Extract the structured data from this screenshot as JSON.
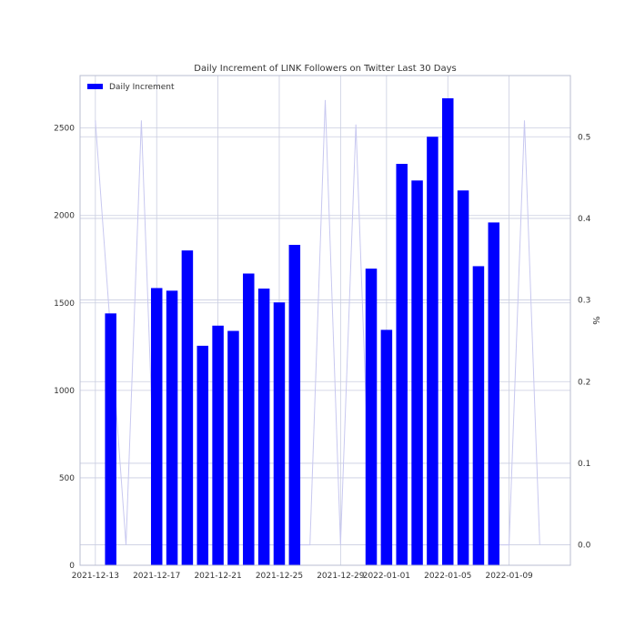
{
  "chart_data": {
    "type": "bar",
    "title": "Daily Increment of LINK Followers on Twitter Last 30 Days",
    "legend": {
      "position": "top-left",
      "entries": [
        "Daily Increment"
      ]
    },
    "series": [
      {
        "name": "Daily Increment",
        "color": "#0000ff",
        "points": [
          {
            "x": "2021-12-14",
            "y": 1440
          },
          {
            "x": "2021-12-17",
            "y": 1585
          },
          {
            "x": "2021-12-18",
            "y": 1570
          },
          {
            "x": "2021-12-19",
            "y": 1800
          },
          {
            "x": "2021-12-20",
            "y": 1255
          },
          {
            "x": "2021-12-21",
            "y": 1370
          },
          {
            "x": "2021-12-22",
            "y": 1340
          },
          {
            "x": "2021-12-23",
            "y": 1668
          },
          {
            "x": "2021-12-24",
            "y": 1582
          },
          {
            "x": "2021-12-25",
            "y": 1503
          },
          {
            "x": "2021-12-26",
            "y": 1832
          },
          {
            "x": "2021-12-31",
            "y": 1696
          },
          {
            "x": "2022-01-01",
            "y": 1346
          },
          {
            "x": "2022-01-02",
            "y": 2295
          },
          {
            "x": "2022-01-03",
            "y": 2200
          },
          {
            "x": "2022-01-04",
            "y": 2450
          },
          {
            "x": "2022-01-05",
            "y": 2670
          },
          {
            "x": "2022-01-06",
            "y": 2143
          },
          {
            "x": "2022-01-07",
            "y": 1710
          },
          {
            "x": "2022-01-08",
            "y": 1960
          }
        ]
      },
      {
        "name": "",
        "color": "#c8c8f0",
        "axis": "right",
        "points": [
          {
            "x": "2021-12-13",
            "y": 0.52
          },
          {
            "x": "2021-12-15",
            "y": 0.0
          },
          {
            "x": "2021-12-16",
            "y": 0.52
          },
          {
            "x": "2021-12-17",
            "y": 0.0
          },
          {
            "x": "2021-12-26",
            "y": 0.0
          },
          {
            "x": "2021-12-27",
            "y": 0.0
          },
          {
            "x": "2021-12-28",
            "y": 0.545
          },
          {
            "x": "2021-12-29",
            "y": 0.0
          },
          {
            "x": "2021-12-30",
            "y": 0.515
          },
          {
            "x": "2021-12-31",
            "y": 0.0
          },
          {
            "x": "2022-01-08",
            "y": 0.0
          },
          {
            "x": "2022-01-09",
            "y": 0.0
          },
          {
            "x": "2022-01-10",
            "y": 0.52
          },
          {
            "x": "2022-01-11",
            "y": 0.0
          }
        ]
      }
    ],
    "x_axis": {
      "type": "date",
      "range": [
        "2021-12-12",
        "2022-01-13"
      ],
      "ticks": [
        "2021-12-13",
        "2021-12-17",
        "2021-12-21",
        "2021-12-25",
        "2021-12-29",
        "2022-01-01",
        "2022-01-05",
        "2022-01-09"
      ]
    },
    "y_axis_left": {
      "range": [
        0,
        2800
      ],
      "ticks": [
        0,
        500,
        1000,
        1500,
        2000,
        2500
      ],
      "label": ""
    },
    "y_axis_right": {
      "range": [
        -0.025,
        0.575
      ],
      "ticks": [
        "0.0",
        "0.1",
        "0.2",
        "0.3",
        "0.4",
        "0.5"
      ],
      "label": "%"
    },
    "grid": true
  }
}
